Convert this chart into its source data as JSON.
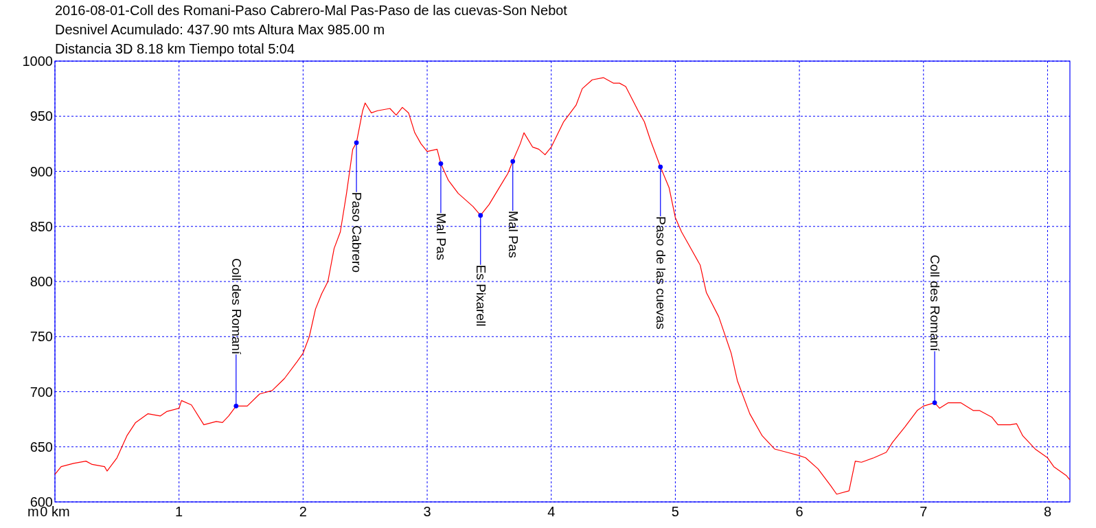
{
  "chart_data": {
    "type": "line",
    "title": "2016-08-01-Coll des Romani-Paso Cabrero-Mal Pas-Paso de las cuevas-Son Nebot",
    "subtitle": "Desnivel Acumulado: 437.90 mts  Altura Max 985.00 m",
    "ylabel": "m",
    "annotations": [
      "Distancia 3D 8.18 km  Tiempo total 5:04",
      {
        "text": "Coll des Romaní",
        "x": 1.46,
        "y": 687
      },
      {
        "text": "Paso Cabrero",
        "x": 2.43,
        "y": 926
      },
      {
        "text": "Mal Pas",
        "x": 3.11,
        "y": 907
      },
      {
        "text": "Es Pixarell",
        "x": 3.43,
        "y": 860
      },
      {
        "text": "Mal Pas",
        "x": 3.69,
        "y": 909
      },
      {
        "text": "Paso de las cuevas",
        "x": 4.88,
        "y": 904
      },
      {
        "text": "Coll des Romaní",
        "x": 7.09,
        "y": 690
      }
    ],
    "xlim": [
      0,
      8.18
    ],
    "ylim": [
      600,
      1000
    ],
    "xticks": [
      {
        "value": 0,
        "label": "0 km"
      },
      1,
      2,
      3,
      4,
      5,
      6,
      7,
      8
    ],
    "yticks": [
      600,
      650,
      700,
      750,
      800,
      850,
      900,
      950,
      1000
    ],
    "grid": true,
    "series": [
      {
        "color": "#ff0000",
        "marker": "none",
        "line_style": "solid",
        "x": [
          0,
          0.05,
          0.15,
          0.25,
          0.3,
          0.4,
          0.42,
          0.5,
          0.58,
          0.65,
          0.75,
          0.85,
          0.9,
          1.0,
          1.02,
          1.1,
          1.2,
          1.3,
          1.35,
          1.4,
          1.46,
          1.55,
          1.65,
          1.75,
          1.85,
          1.95,
          2.0,
          2.05,
          2.1,
          2.15,
          2.2,
          2.25,
          2.3,
          2.35,
          2.4,
          2.43,
          2.48,
          2.5,
          2.55,
          2.6,
          2.7,
          2.75,
          2.8,
          2.85,
          2.9,
          2.95,
          3.0,
          3.08,
          3.11,
          3.17,
          3.25,
          3.3,
          3.37,
          3.43,
          3.5,
          3.58,
          3.65,
          3.7,
          3.75,
          3.78,
          3.85,
          3.9,
          3.95,
          4.0,
          4.1,
          4.2,
          4.25,
          4.33,
          4.42,
          4.5,
          4.55,
          4.6,
          4.7,
          4.75,
          4.8,
          4.88,
          4.95,
          5.0,
          5.05,
          5.1,
          5.2,
          5.25,
          5.35,
          5.45,
          5.5,
          5.6,
          5.7,
          5.8,
          5.9,
          6.0,
          6.05,
          6.15,
          6.25,
          6.3,
          6.4,
          6.45,
          6.5,
          6.6,
          6.7,
          6.75,
          6.85,
          6.95,
          7.0,
          7.09,
          7.13,
          7.2,
          7.3,
          7.4,
          7.45,
          7.55,
          7.6,
          7.7,
          7.75,
          7.8,
          7.9,
          8.0,
          8.05,
          8.15,
          8.18
        ],
        "values": [
          625,
          632,
          635,
          637,
          634,
          632,
          628,
          640,
          660,
          672,
          680,
          678,
          682,
          685,
          692,
          688,
          670,
          673,
          672,
          678,
          687,
          687,
          698,
          701,
          712,
          727,
          735,
          750,
          775,
          789,
          800,
          830,
          845,
          880,
          920,
          926,
          955,
          962,
          953,
          955,
          957,
          951,
          958,
          953,
          935,
          925,
          918,
          920,
          907,
          892,
          880,
          875,
          868,
          860,
          870,
          885,
          898,
          912,
          925,
          935,
          922,
          920,
          915,
          922,
          945,
          960,
          975,
          983,
          985,
          980,
          980,
          977,
          955,
          945,
          928,
          904,
          885,
          858,
          845,
          835,
          815,
          790,
          768,
          735,
          710,
          680,
          660,
          648,
          645,
          642,
          640,
          630,
          615,
          607,
          610,
          637,
          636,
          640,
          645,
          654,
          668,
          683,
          687,
          690,
          685,
          690,
          690,
          683,
          683,
          677,
          670,
          670,
          671,
          660,
          648,
          640,
          632,
          624,
          620
        ]
      },
      {
        "type": "scatter",
        "color": "#0000ff",
        "marker": "circle",
        "x": [
          1.46,
          2.43,
          3.11,
          3.43,
          3.69,
          4.88,
          7.09
        ],
        "values": [
          687,
          926,
          907,
          860,
          909,
          904,
          690
        ]
      }
    ]
  }
}
